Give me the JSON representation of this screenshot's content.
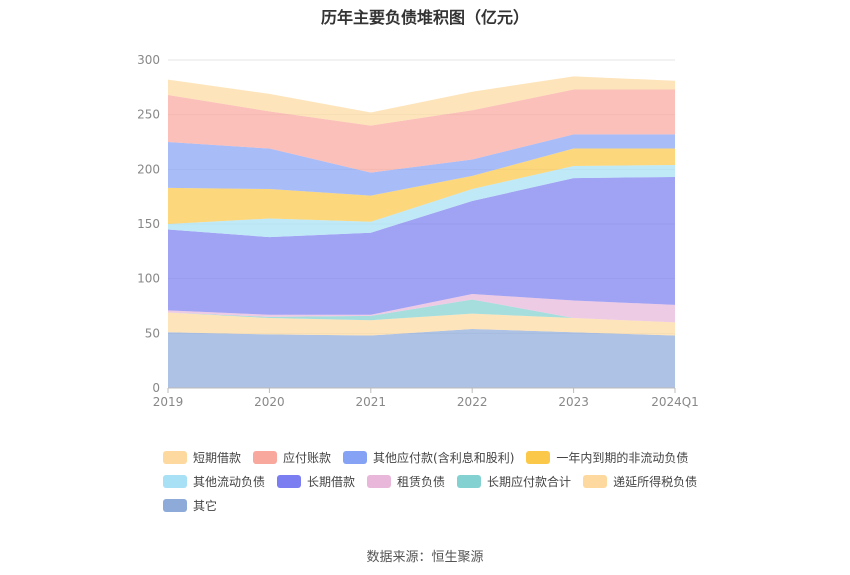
{
  "chart_data": {
    "type": "area",
    "stacked": true,
    "title": "历年主要负债堆积图（亿元）",
    "source": "数据来源：恒生聚源",
    "categories": [
      "2019",
      "2020",
      "2021",
      "2022",
      "2023",
      "2024Q1"
    ],
    "ylim": [
      0,
      300
    ],
    "yticks": [
      "0",
      "50",
      "100",
      "150",
      "200",
      "250",
      "300"
    ],
    "grid": true,
    "legend_position": "bottom",
    "series": [
      {
        "name": "其它",
        "color": "#8eaad9",
        "values": [
          51,
          49,
          48,
          54,
          51,
          48
        ]
      },
      {
        "name": "递延所得税负债",
        "color": "#fdd9a0",
        "values": [
          18,
          15,
          14,
          14,
          13,
          12
        ]
      },
      {
        "name": "长期应付款合计",
        "color": "#84d1d1",
        "values": [
          0,
          1,
          4,
          13,
          0,
          0
        ]
      },
      {
        "name": "租赁负债",
        "color": "#e8b7d9",
        "values": [
          2,
          2,
          1,
          5,
          16,
          16
        ]
      },
      {
        "name": "长期借款",
        "color": "#7b7ef0",
        "values": [
          74,
          71,
          75,
          85,
          112,
          117
        ]
      },
      {
        "name": "其他流动负债",
        "color": "#a8e0f5",
        "values": [
          5,
          17,
          10,
          11,
          11,
          11
        ]
      },
      {
        "name": "一年内到期的非流动负债",
        "color": "#fbc84a",
        "values": [
          33,
          27,
          24,
          12,
          16,
          15
        ]
      },
      {
        "name": "其他应付款(含利息和股利)",
        "color": "#86a2f5",
        "values": [
          42,
          37,
          21,
          15,
          13,
          13
        ]
      },
      {
        "name": "应付账款",
        "color": "#f9a89e",
        "values": [
          43,
          34,
          43,
          45,
          41,
          41
        ]
      },
      {
        "name": "短期借款",
        "color": "#fdd9a0",
        "values": [
          14,
          16,
          12,
          17,
          12,
          8
        ]
      }
    ],
    "legend_order": [
      "短期借款",
      "应付账款",
      "其他应付款(含利息和股利)",
      "一年内到期的非流动负债",
      "其他流动负债",
      "长期借款",
      "租赁负债",
      "长期应付款合计",
      "递延所得税负债",
      "其它"
    ]
  }
}
